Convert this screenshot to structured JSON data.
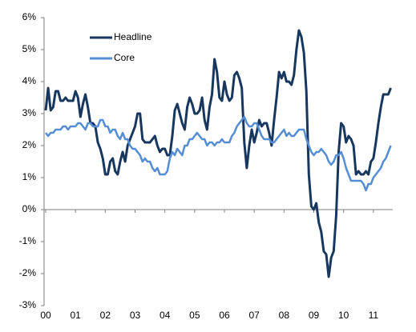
{
  "chart_data": {
    "type": "line",
    "x": [
      2000,
      2000.083,
      2000.167,
      2000.25,
      2000.333,
      2000.417,
      2000.5,
      2000.583,
      2000.667,
      2000.75,
      2000.833,
      2000.917,
      2001,
      2001.083,
      2001.167,
      2001.25,
      2001.333,
      2001.417,
      2001.5,
      2001.583,
      2001.667,
      2001.75,
      2001.833,
      2001.917,
      2002,
      2002.083,
      2002.167,
      2002.25,
      2002.333,
      2002.417,
      2002.5,
      2002.583,
      2002.667,
      2002.75,
      2002.833,
      2002.917,
      2003,
      2003.083,
      2003.167,
      2003.25,
      2003.333,
      2003.417,
      2003.5,
      2003.583,
      2003.667,
      2003.75,
      2003.833,
      2003.917,
      2004,
      2004.083,
      2004.167,
      2004.25,
      2004.333,
      2004.417,
      2004.5,
      2004.583,
      2004.667,
      2004.75,
      2004.833,
      2004.917,
      2005,
      2005.083,
      2005.167,
      2005.25,
      2005.333,
      2005.417,
      2005.5,
      2005.583,
      2005.667,
      2005.75,
      2005.833,
      2005.917,
      2006,
      2006.083,
      2006.167,
      2006.25,
      2006.333,
      2006.417,
      2006.5,
      2006.583,
      2006.667,
      2006.75,
      2006.833,
      2006.917,
      2007,
      2007.083,
      2007.167,
      2007.25,
      2007.333,
      2007.417,
      2007.5,
      2007.583,
      2007.667,
      2007.75,
      2007.833,
      2007.917,
      2008,
      2008.083,
      2008.167,
      2008.25,
      2008.333,
      2008.417,
      2008.5,
      2008.583,
      2008.667,
      2008.75,
      2008.833,
      2008.917,
      2009,
      2009.083,
      2009.167,
      2009.25,
      2009.333,
      2009.417,
      2009.5,
      2009.583,
      2009.667,
      2009.75,
      2009.833,
      2009.917,
      2010,
      2010.083,
      2010.167,
      2010.25,
      2010.333,
      2010.417,
      2010.5,
      2010.583,
      2010.667,
      2010.75,
      2010.833,
      2010.917,
      2011,
      2011.083,
      2011.167,
      2011.25,
      2011.333,
      2011.417,
      2011.5,
      2011.583
    ],
    "series": [
      {
        "name": "Headline",
        "color": "#17375e",
        "values": [
          3.1,
          3.8,
          3.1,
          3.2,
          3.7,
          3.7,
          3.4,
          3.4,
          3.5,
          3.4,
          3.4,
          3.4,
          3.7,
          3.5,
          2.9,
          3.3,
          3.6,
          3.2,
          2.7,
          2.7,
          2.6,
          2.1,
          1.9,
          1.6,
          1.1,
          1.1,
          1.5,
          1.6,
          1.2,
          1.1,
          1.5,
          1.8,
          1.5,
          2.0,
          2.2,
          2.4,
          2.6,
          3.0,
          3.0,
          2.2,
          2.1,
          2.1,
          2.1,
          2.2,
          2.3,
          2.0,
          1.8,
          1.9,
          1.9,
          1.7,
          1.7,
          2.3,
          3.1,
          3.3,
          3.0,
          2.7,
          2.5,
          3.2,
          3.5,
          3.3,
          3.0,
          3.0,
          3.1,
          3.5,
          2.8,
          2.5,
          3.2,
          3.6,
          4.7,
          4.3,
          3.5,
          3.4,
          4.0,
          3.6,
          3.4,
          3.5,
          4.2,
          4.3,
          4.1,
          3.8,
          2.1,
          1.3,
          2.0,
          2.5,
          2.1,
          2.4,
          2.8,
          2.6,
          2.7,
          2.7,
          2.4,
          2.0,
          2.8,
          3.5,
          4.3,
          4.1,
          4.3,
          4.0,
          4.0,
          3.9,
          4.2,
          5.0,
          5.6,
          5.4,
          4.9,
          3.7,
          1.1,
          0.1,
          0.0,
          0.2,
          -0.4,
          -0.7,
          -1.3,
          -1.4,
          -2.1,
          -1.5,
          -1.3,
          -0.2,
          1.8,
          2.7,
          2.6,
          2.1,
          2.3,
          2.2,
          2.0,
          1.1,
          1.2,
          1.1,
          1.1,
          1.2,
          1.1,
          1.5,
          1.6,
          2.1,
          2.7,
          3.2,
          3.6,
          3.6,
          3.6,
          3.8
        ]
      },
      {
        "name": "Core",
        "color": "#558ed5",
        "values": [
          2.4,
          2.3,
          2.4,
          2.4,
          2.5,
          2.5,
          2.5,
          2.6,
          2.6,
          2.5,
          2.6,
          2.6,
          2.6,
          2.7,
          2.7,
          2.6,
          2.5,
          2.7,
          2.7,
          2.6,
          2.6,
          2.6,
          2.8,
          2.8,
          2.6,
          2.6,
          2.4,
          2.5,
          2.5,
          2.3,
          2.2,
          2.4,
          2.2,
          2.2,
          2.0,
          1.9,
          1.9,
          1.8,
          1.7,
          1.5,
          1.6,
          1.5,
          1.5,
          1.3,
          1.2,
          1.3,
          1.1,
          1.1,
          1.1,
          1.2,
          1.6,
          1.8,
          1.7,
          1.9,
          1.8,
          1.7,
          2.0,
          2.0,
          2.2,
          2.2,
          2.3,
          2.4,
          2.3,
          2.2,
          2.2,
          2.0,
          2.1,
          2.1,
          2.0,
          2.1,
          2.1,
          2.2,
          2.1,
          2.1,
          2.1,
          2.3,
          2.4,
          2.6,
          2.7,
          2.8,
          2.9,
          2.7,
          2.6,
          2.6,
          2.7,
          2.7,
          2.5,
          2.3,
          2.2,
          2.2,
          2.2,
          2.1,
          2.1,
          2.2,
          2.3,
          2.4,
          2.5,
          2.3,
          2.4,
          2.3,
          2.3,
          2.4,
          2.5,
          2.5,
          2.5,
          2.2,
          2.0,
          1.8,
          1.7,
          1.8,
          1.8,
          1.9,
          1.8,
          1.7,
          1.5,
          1.4,
          1.5,
          1.7,
          1.7,
          1.8,
          1.6,
          1.3,
          1.1,
          0.9,
          0.9,
          0.9,
          0.9,
          0.9,
          0.8,
          0.6,
          0.8,
          0.8,
          1.0,
          1.1,
          1.2,
          1.3,
          1.5,
          1.6,
          1.8,
          2.0
        ]
      }
    ],
    "xlim": [
      2000,
      2011.65
    ],
    "xticks": [
      {
        "value": 2000,
        "label": "00"
      },
      {
        "value": 2001,
        "label": "01"
      },
      {
        "value": 2002,
        "label": "02"
      },
      {
        "value": 2003,
        "label": "03"
      },
      {
        "value": 2004,
        "label": "04"
      },
      {
        "value": 2005,
        "label": "05"
      },
      {
        "value": 2006,
        "label": "06"
      },
      {
        "value": 2007,
        "label": "07"
      },
      {
        "value": 2008,
        "label": "08"
      },
      {
        "value": 2009,
        "label": "09"
      },
      {
        "value": 2010,
        "label": "10"
      },
      {
        "value": 2011,
        "label": "11"
      }
    ],
    "ylim": [
      -3,
      6
    ],
    "yticks": [
      {
        "value": -3,
        "label": "-3%"
      },
      {
        "value": -2,
        "label": "-2%"
      },
      {
        "value": -1,
        "label": "-1%"
      },
      {
        "value": 0,
        "label": "0%"
      },
      {
        "value": 1,
        "label": "1%"
      },
      {
        "value": 2,
        "label": "2%"
      },
      {
        "value": 3,
        "label": "3%"
      },
      {
        "value": 4,
        "label": "4%"
      },
      {
        "value": 5,
        "label": "5%"
      },
      {
        "value": 6,
        "label": "6%"
      }
    ],
    "grid": false,
    "legend": "upper-left"
  }
}
